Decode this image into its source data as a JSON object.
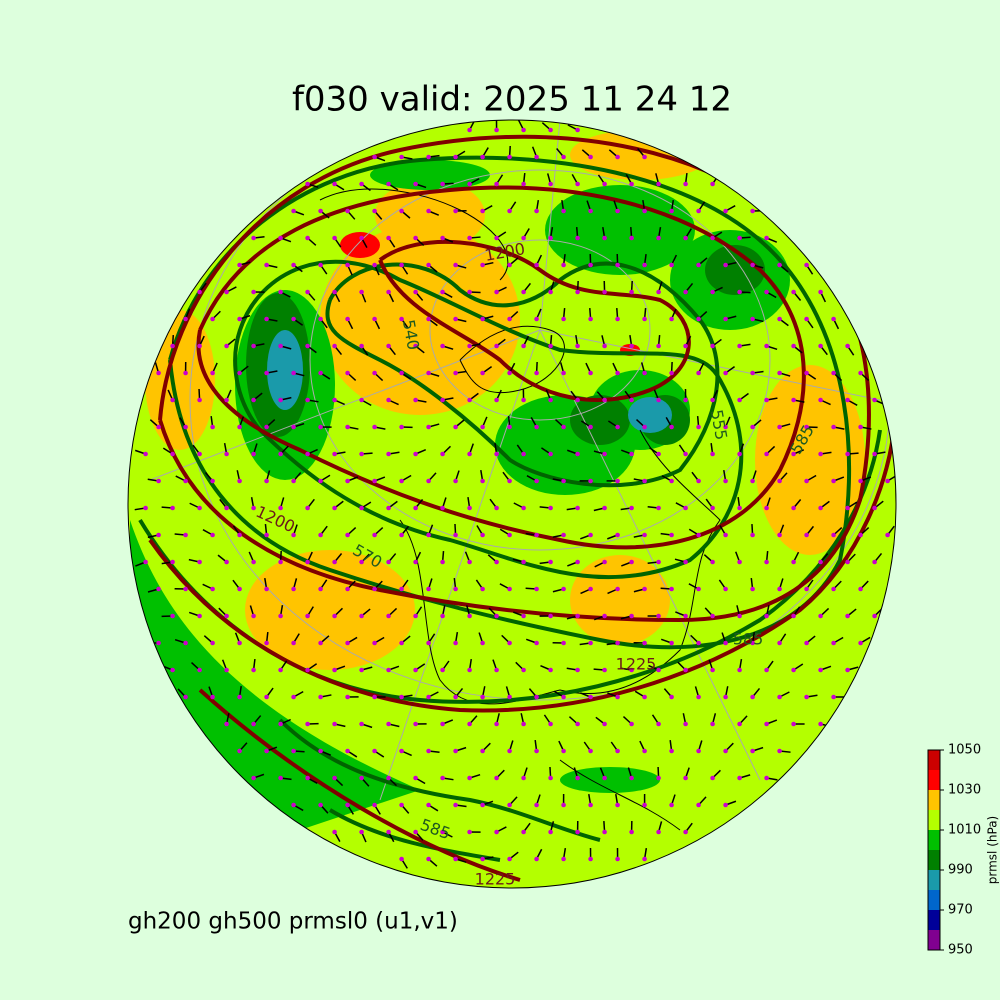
{
  "map": {
    "title": "f030 valid:   2025 11 24 12",
    "footer": "gh200 gh500 prmsl0 (u1,v1)",
    "colorbar": {
      "label": "prmsl (hPa)",
      "levels": [
        950,
        960,
        970,
        980,
        990,
        1000,
        1010,
        1020,
        1030,
        1040,
        1050
      ],
      "colors": [
        "#800090",
        "#000099",
        "#0066cc",
        "#1a9aaa",
        "#008000",
        "#00c000",
        "#b4ff00",
        "#ffc400",
        "#ff0000",
        "#cc0000"
      ],
      "ticks": [
        950,
        970,
        990,
        1010,
        1030,
        1050
      ]
    },
    "contour_labels": [
      "540",
      "570",
      "585",
      "585",
      "585",
      "555",
      "1200",
      "1225",
      "1225",
      "1200"
    ]
  }
}
